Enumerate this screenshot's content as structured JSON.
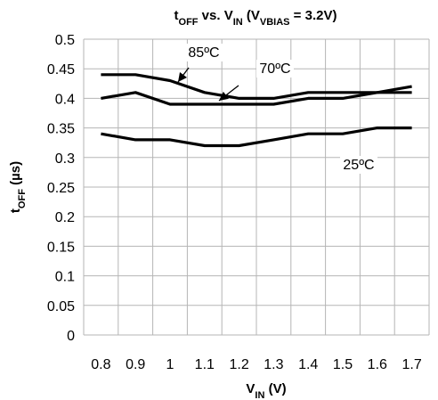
{
  "chart_data": {
    "type": "line",
    "title": {
      "parts": [
        {
          "text": "t",
          "sub": false
        },
        {
          "text": "OFF",
          "sub": true
        },
        {
          "text": " vs. V",
          "sub": false
        },
        {
          "text": "IN",
          "sub": true
        },
        {
          "text": " (V",
          "sub": false
        },
        {
          "text": "VBIAS",
          "sub": true
        },
        {
          "text": " = 3.2V)",
          "sub": false
        }
      ]
    },
    "xlabel": {
      "parts": [
        {
          "text": "V",
          "sub": false
        },
        {
          "text": "IN",
          "sub": true
        },
        {
          "text": " (V)",
          "sub": false
        }
      ]
    },
    "ylabel": {
      "parts": [
        {
          "text": "t",
          "sub": false
        },
        {
          "text": "OFF",
          "sub": true
        },
        {
          "text": " (µs)",
          "sub": false
        }
      ]
    },
    "categories": [
      "0.8",
      "0.9",
      "1",
      "1.1",
      "1.2",
      "1.3",
      "1.4",
      "1.5",
      "1.6",
      "1.7"
    ],
    "yticks": [
      "0",
      "0.05",
      "0.1",
      "0.15",
      "0.2",
      "0.25",
      "0.3",
      "0.35",
      "0.4",
      "0.45",
      "0.5"
    ],
    "ylim": [
      0,
      0.5
    ],
    "grid": true,
    "legend": "none (inline labels)",
    "series": [
      {
        "name": "85ºC",
        "values": [
          0.44,
          0.44,
          0.43,
          0.41,
          0.4,
          0.4,
          0.41,
          0.41,
          0.41,
          0.41
        ]
      },
      {
        "name": "70ºC",
        "values": [
          0.4,
          0.41,
          0.39,
          0.39,
          0.39,
          0.39,
          0.4,
          0.4,
          0.41,
          0.42
        ]
      },
      {
        "name": "25ºC",
        "values": [
          0.34,
          0.33,
          0.33,
          0.32,
          0.32,
          0.33,
          0.34,
          0.34,
          0.35,
          0.35
        ]
      }
    ],
    "series_color": "#000000",
    "grid_color": "#b5b5b5"
  }
}
